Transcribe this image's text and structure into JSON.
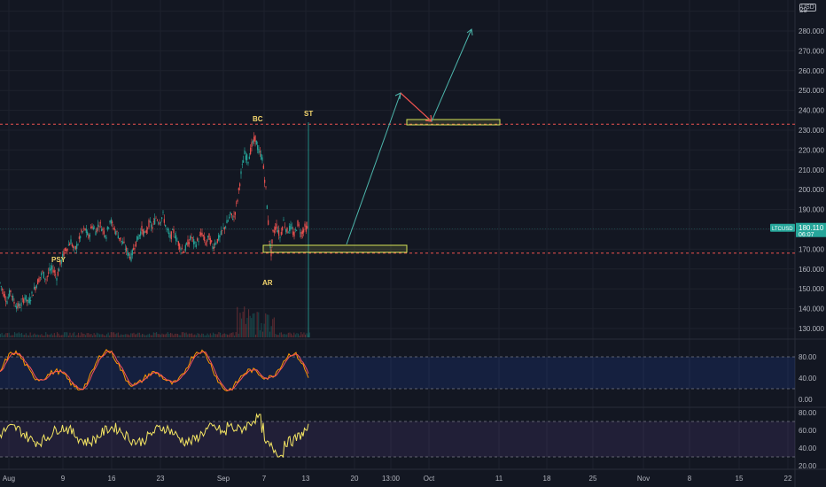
{
  "colors": {
    "background": "#131722",
    "grid": "#1e222d",
    "bull": "#26a69a",
    "bear": "#ef5350",
    "stoch_k": "#ff9800",
    "stoch_d": "#f7525f",
    "rsi": "#f5e663",
    "level_line": "#ef5350",
    "zone": "#d4e157",
    "arrow": "#4db6ac",
    "arrow_red": "#ef5350",
    "price_tag": "#26a69a"
  },
  "price_axis": {
    "currency_badge": "USD",
    "top_partial_label": "29",
    "ticks": [
      "280.000",
      "270.000",
      "260.000",
      "250.000",
      "240.000",
      "230.000",
      "220.000",
      "210.000",
      "200.000",
      "190.000",
      "170.000",
      "160.000",
      "150.000",
      "140.000",
      "130.000"
    ],
    "current_price": "180.110",
    "countdown": "06:07",
    "symbol_tag": "LTCUSD"
  },
  "stoch_axis": {
    "ticks": [
      "80.00",
      "40.00",
      "0.00"
    ]
  },
  "rsi_axis": {
    "ticks": [
      "80.00",
      "60.00",
      "40.00",
      "20.00"
    ]
  },
  "time_axis": {
    "ticks": [
      "Aug",
      "9",
      "16",
      "23",
      "Sep",
      "7",
      "13",
      "20",
      "13:00",
      "Oct",
      "11",
      "18",
      "25",
      "Nov",
      "8",
      "15",
      "22"
    ]
  },
  "annotations": {
    "psy": "PSY",
    "bc": "BC",
    "ar": "AR",
    "st": "ST"
  },
  "chart_data": {
    "type": "candlestick",
    "symbol": "LTCUSD",
    "interval": "intraday",
    "price_range": [
      125,
      293
    ],
    "current_price": 180.11,
    "resistance_level": 233,
    "support_level": 168,
    "events": [
      {
        "label": "PSY",
        "price": 161
      },
      {
        "label": "BC",
        "price": 233
      },
      {
        "label": "AR",
        "price": 170
      },
      {
        "label": "ST",
        "price": 240
      }
    ],
    "price_path": [
      [
        0,
        153
      ],
      [
        4,
        148
      ],
      [
        8,
        144
      ],
      [
        12,
        149
      ],
      [
        16,
        143
      ],
      [
        20,
        141
      ],
      [
        24,
        142
      ],
      [
        28,
        146
      ],
      [
        32,
        143
      ],
      [
        36,
        147
      ],
      [
        40,
        151
      ],
      [
        44,
        155
      ],
      [
        48,
        158
      ],
      [
        52,
        155
      ],
      [
        56,
        159
      ],
      [
        60,
        160
      ],
      [
        64,
        156
      ],
      [
        68,
        162
      ],
      [
        72,
        168
      ],
      [
        76,
        171
      ],
      [
        80,
        174
      ],
      [
        84,
        169
      ],
      [
        88,
        173
      ],
      [
        92,
        178
      ],
      [
        96,
        180
      ],
      [
        100,
        176
      ],
      [
        104,
        182
      ],
      [
        108,
        179
      ],
      [
        112,
        183
      ],
      [
        116,
        180
      ],
      [
        120,
        177
      ],
      [
        124,
        185
      ],
      [
        128,
        181
      ],
      [
        132,
        178
      ],
      [
        136,
        175
      ],
      [
        140,
        172
      ],
      [
        144,
        168
      ],
      [
        148,
        166
      ],
      [
        152,
        172
      ],
      [
        156,
        176
      ],
      [
        160,
        180
      ],
      [
        164,
        177
      ],
      [
        168,
        183
      ],
      [
        172,
        181
      ],
      [
        176,
        186
      ],
      [
        180,
        184
      ],
      [
        184,
        187
      ],
      [
        188,
        180
      ],
      [
        192,
        176
      ],
      [
        196,
        179
      ],
      [
        200,
        174
      ],
      [
        204,
        171
      ],
      [
        208,
        169
      ],
      [
        212,
        173
      ],
      [
        216,
        176
      ],
      [
        220,
        172
      ],
      [
        224,
        175
      ],
      [
        228,
        178
      ],
      [
        232,
        173
      ],
      [
        236,
        176
      ],
      [
        240,
        171
      ],
      [
        244,
        174
      ],
      [
        248,
        176
      ],
      [
        252,
        180
      ],
      [
        256,
        183
      ],
      [
        260,
        187
      ],
      [
        264,
        186
      ],
      [
        268,
        195
      ],
      [
        272,
        208
      ],
      [
        276,
        218
      ],
      [
        280,
        215
      ],
      [
        284,
        222
      ],
      [
        288,
        226
      ],
      [
        292,
        219
      ],
      [
        296,
        216
      ],
      [
        300,
        200
      ],
      [
        304,
        175
      ],
      [
        306,
        168
      ],
      [
        308,
        178
      ],
      [
        312,
        182
      ],
      [
        316,
        176
      ],
      [
        320,
        184
      ],
      [
        324,
        179
      ],
      [
        328,
        181
      ],
      [
        332,
        177
      ],
      [
        336,
        183
      ],
      [
        340,
        178
      ],
      [
        344,
        181
      ],
      [
        348,
        180.11
      ]
    ],
    "projection": [
      [
        391,
        172
      ],
      [
        452,
        248
      ],
      [
        487,
        233
      ],
      [
        532,
        282
      ]
    ]
  }
}
